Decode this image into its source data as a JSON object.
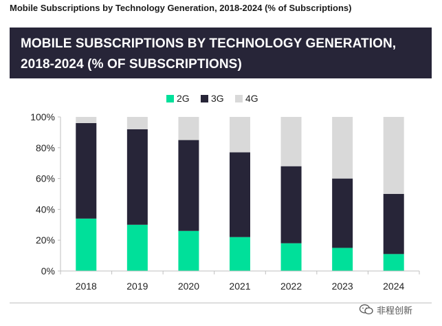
{
  "caption": "Mobile Subscriptions by Technology Generation, 2018-2024 (% of Subscriptions)",
  "banner": {
    "line1": "MOBILE SUBSCRIPTIONS BY TECHNOLOGY GENERATION,",
    "line2": "2018-2024 (% OF SUBSCRIPTIONS)"
  },
  "watermark": {
    "text": "非程创新"
  },
  "colors": {
    "2G": "#00e09a",
    "3G": "#272538",
    "4G": "#d9d9d9",
    "banner": "#272538"
  },
  "chart_data": {
    "type": "bar",
    "stacked": true,
    "title": "MOBILE SUBSCRIPTIONS BY TECHNOLOGY GENERATION, 2018-2024 (% OF SUBSCRIPTIONS)",
    "xlabel": "",
    "ylabel": "",
    "ylim": [
      0,
      100
    ],
    "y_ticks": [
      "0%",
      "20%",
      "40%",
      "60%",
      "80%",
      "100%"
    ],
    "y_tick_values": [
      0,
      20,
      40,
      60,
      80,
      100
    ],
    "legend_position": "top-center",
    "categories": [
      "2018",
      "2019",
      "2020",
      "2021",
      "2022",
      "2023",
      "2024"
    ],
    "series": [
      {
        "name": "2G",
        "values": [
          34,
          30,
          26,
          22,
          18,
          15,
          11
        ]
      },
      {
        "name": "3G",
        "values": [
          62,
          62,
          59,
          55,
          50,
          45,
          39
        ]
      },
      {
        "name": "4G",
        "values": [
          4,
          8,
          15,
          23,
          32,
          40,
          50
        ]
      }
    ]
  }
}
